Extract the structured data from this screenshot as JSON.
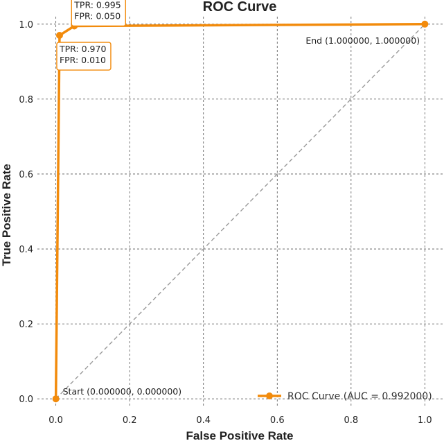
{
  "chart_data": {
    "type": "line",
    "title": "ROC Curve",
    "xlabel": "False Positive Rate",
    "ylabel": "True Positive Rate",
    "xlim": [
      -0.05,
      1.05
    ],
    "ylim": [
      -0.02,
      1.02
    ],
    "xticks": [
      0.0,
      0.2,
      0.4,
      0.6,
      0.8,
      1.0
    ],
    "xtick_labels": [
      "0.0",
      "0.2",
      "0.4",
      "0.6",
      "0.8",
      "1.0"
    ],
    "yticks": [
      0.0,
      0.2,
      0.4,
      0.6,
      0.8,
      1.0
    ],
    "ytick_labels": [
      "0.0",
      "0.2",
      "0.4",
      "0.6",
      "0.8",
      "1.0"
    ],
    "grid": true,
    "legend_position": "bottom-right",
    "series": [
      {
        "name": "ROC Curve (AUC = 0.992000)",
        "color": "#f28b0c",
        "x": [
          0.0,
          0.01,
          0.05,
          1.0
        ],
        "y": [
          0.0,
          0.97,
          0.995,
          1.0
        ]
      }
    ],
    "reference_line": {
      "x": [
        0.0,
        1.0
      ],
      "y": [
        0.0,
        1.0
      ],
      "color": "#999999",
      "style": "dashed"
    },
    "annotations": [
      {
        "lines": [
          "TPR: 0.995",
          "FPR: 0.050"
        ],
        "boxed": true
      },
      {
        "lines": [
          "TPR: 0.970",
          "FPR: 0.010"
        ],
        "boxed": true
      },
      {
        "lines": [
          "End (1.000000, 1.000000)"
        ],
        "boxed": false
      },
      {
        "lines": [
          "Start (0.000000, 0.000000)"
        ],
        "boxed": false
      }
    ]
  }
}
